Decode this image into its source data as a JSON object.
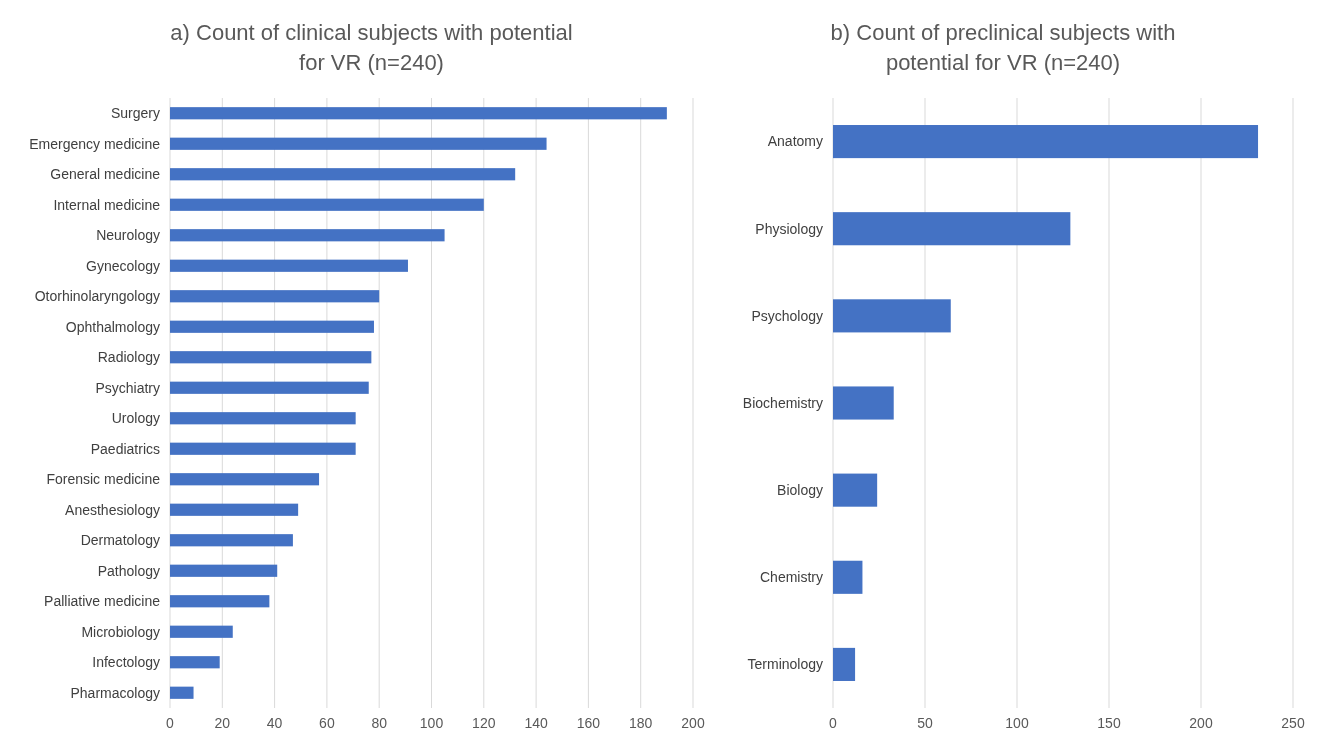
{
  "chart_data": [
    {
      "type": "bar",
      "orientation": "horizontal",
      "title": "a) Count of clinical subjects with potential for VR (n=240)",
      "categories": [
        "Surgery",
        "Emergency medicine",
        "General medicine",
        "Internal medicine",
        "Neurology",
        "Gynecology",
        "Otorhinolaryngology",
        "Ophthalmology",
        "Radiology",
        "Psychiatry",
        "Urology",
        "Paediatrics",
        "Forensic medicine",
        "Anesthesiology",
        "Dermatology",
        "Pathology",
        "Palliative medicine",
        "Microbiology",
        "Infectology",
        "Pharmacology"
      ],
      "values": [
        190,
        144,
        132,
        120,
        105,
        91,
        80,
        78,
        77,
        76,
        71,
        71,
        57,
        49,
        47,
        41,
        38,
        24,
        19,
        9
      ],
      "color": "#4472c4",
      "xlim": [
        0,
        200
      ],
      "xticks": [
        0,
        20,
        40,
        60,
        80,
        100,
        120,
        140,
        160,
        180,
        200
      ],
      "grid": "x"
    },
    {
      "type": "bar",
      "orientation": "horizontal",
      "title": "b) Count of preclinical subjects with potential for VR (n=240)",
      "categories": [
        "Anatomy",
        "Physiology",
        "Psychology",
        "Biochemistry",
        "Biology",
        "Chemistry",
        "Terminology"
      ],
      "values": [
        231,
        129,
        64,
        33,
        24,
        16,
        12
      ],
      "color": "#4472c4",
      "xlim": [
        0,
        250
      ],
      "xticks": [
        0,
        50,
        100,
        150,
        200,
        250
      ],
      "grid": "x"
    }
  ]
}
